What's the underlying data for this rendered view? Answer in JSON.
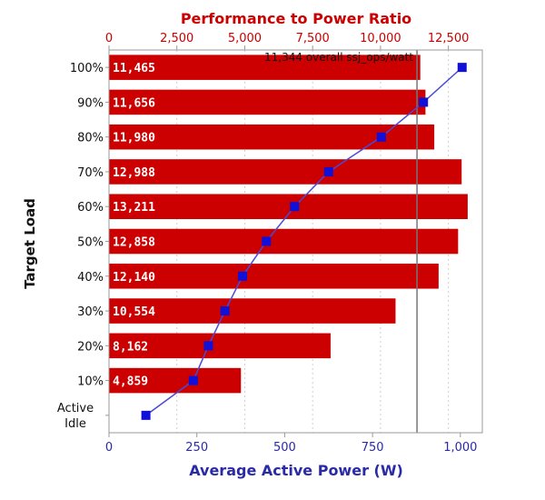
{
  "chart_data": {
    "type": "bar",
    "title_top_axis": "Performance to Power Ratio",
    "xlabel_bottom": "Average Active Power (W)",
    "ylabel": "Target Load",
    "top_axis": {
      "range": [
        0,
        13750
      ],
      "ticks": [
        0,
        2500,
        5000,
        7500,
        10000,
        12500
      ],
      "tick_labels": [
        "0",
        "2,500",
        "5,000",
        "7,500",
        "10,000",
        "12,500"
      ]
    },
    "bottom_axis": {
      "range": [
        0,
        1062.5
      ],
      "ticks": [
        0,
        250,
        500,
        750,
        1000
      ],
      "tick_labels": [
        "0",
        "250",
        "500",
        "750",
        "1,000"
      ]
    },
    "categories": [
      "100%",
      "90%",
      "80%",
      "70%",
      "60%",
      "50%",
      "40%",
      "30%",
      "20%",
      "10%",
      "Active Idle"
    ],
    "category_label_lines": [
      [
        "100%"
      ],
      [
        "90%"
      ],
      [
        "80%"
      ],
      [
        "70%"
      ],
      [
        "60%"
      ],
      [
        "50%"
      ],
      [
        "40%"
      ],
      [
        "30%"
      ],
      [
        "20%"
      ],
      [
        "10%"
      ],
      [
        "Active",
        "Idle"
      ]
    ],
    "bars": {
      "name": "Performance to Power Ratio",
      "values": [
        11465,
        11656,
        11980,
        12988,
        13211,
        12858,
        12140,
        10554,
        8162,
        4859,
        null
      ],
      "labels": [
        "11,465",
        "11,656",
        "11,980",
        "12,988",
        "13,211",
        "12,858",
        "12,140",
        "10,554",
        "8,162",
        "4,859",
        ""
      ]
    },
    "line": {
      "name": "Average Active Power (W)",
      "values": [
        1005,
        895,
        775,
        625,
        528,
        448,
        380,
        330,
        283,
        240,
        105
      ]
    },
    "reference_line": {
      "value": 11344,
      "label": "11,344 overall ssj_ops/watt"
    },
    "grid": true,
    "colors": {
      "bar": "#cc0000",
      "line": "#4a4ad6",
      "marker": "#1010d8",
      "reference": "#777777"
    }
  }
}
